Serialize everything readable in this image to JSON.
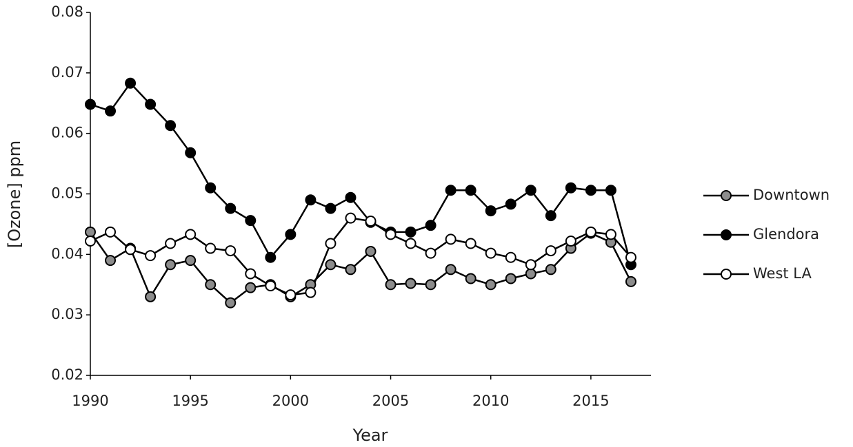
{
  "chart_data": {
    "type": "line",
    "x_label": "Year",
    "y_label": "[Ozone] ppm",
    "x": [
      1990,
      1991,
      1992,
      1993,
      1994,
      1995,
      1996,
      1997,
      1998,
      1999,
      2000,
      2001,
      2002,
      2003,
      2004,
      2005,
      2006,
      2007,
      2008,
      2009,
      2010,
      2011,
      2012,
      2013,
      2014,
      2015,
      2016,
      2017
    ],
    "xlim": [
      1990,
      2018
    ],
    "xticks": [
      1990,
      1995,
      2000,
      2005,
      2010,
      2015
    ],
    "ylim": [
      0.02,
      0.08
    ],
    "yticks": [
      0.02,
      0.03,
      0.04,
      0.05,
      0.06,
      0.07,
      0.08
    ],
    "legend": "right",
    "line_color": "#000000",
    "series": [
      {
        "name": "Downtown",
        "color": "#8c8c8c",
        "values": [
          0.0437,
          0.039,
          0.041,
          0.033,
          0.0383,
          0.039,
          0.035,
          0.032,
          0.0345,
          0.035,
          0.033,
          0.035,
          0.0383,
          0.0375,
          0.0405,
          0.035,
          0.0352,
          0.035,
          0.0375,
          0.036,
          0.035,
          0.036,
          0.0368,
          0.0375,
          0.041,
          0.0435,
          0.042,
          0.0355
        ]
      },
      {
        "name": "Glendora",
        "color": "#000000",
        "values": [
          0.0648,
          0.0637,
          0.0683,
          0.0648,
          0.0613,
          0.0568,
          0.051,
          0.0476,
          0.0456,
          0.0395,
          0.0433,
          0.049,
          0.0476,
          0.0494,
          0.0453,
          0.0437,
          0.0437,
          0.0448,
          0.0506,
          0.0506,
          0.0472,
          0.0483,
          0.0506,
          0.0464,
          0.051,
          0.0506,
          0.0506,
          0.0383
        ]
      },
      {
        "name": "West LA",
        "color": "#ffffff",
        "values": [
          0.0422,
          0.0437,
          0.0408,
          0.0398,
          0.0418,
          0.0433,
          0.041,
          0.0406,
          0.0368,
          0.0348,
          0.0333,
          0.0337,
          0.0418,
          0.046,
          0.0455,
          0.0433,
          0.0418,
          0.0402,
          0.0425,
          0.0418,
          0.0402,
          0.0395,
          0.0383,
          0.0406,
          0.0422,
          0.0437,
          0.0433,
          0.0395
        ]
      }
    ]
  }
}
